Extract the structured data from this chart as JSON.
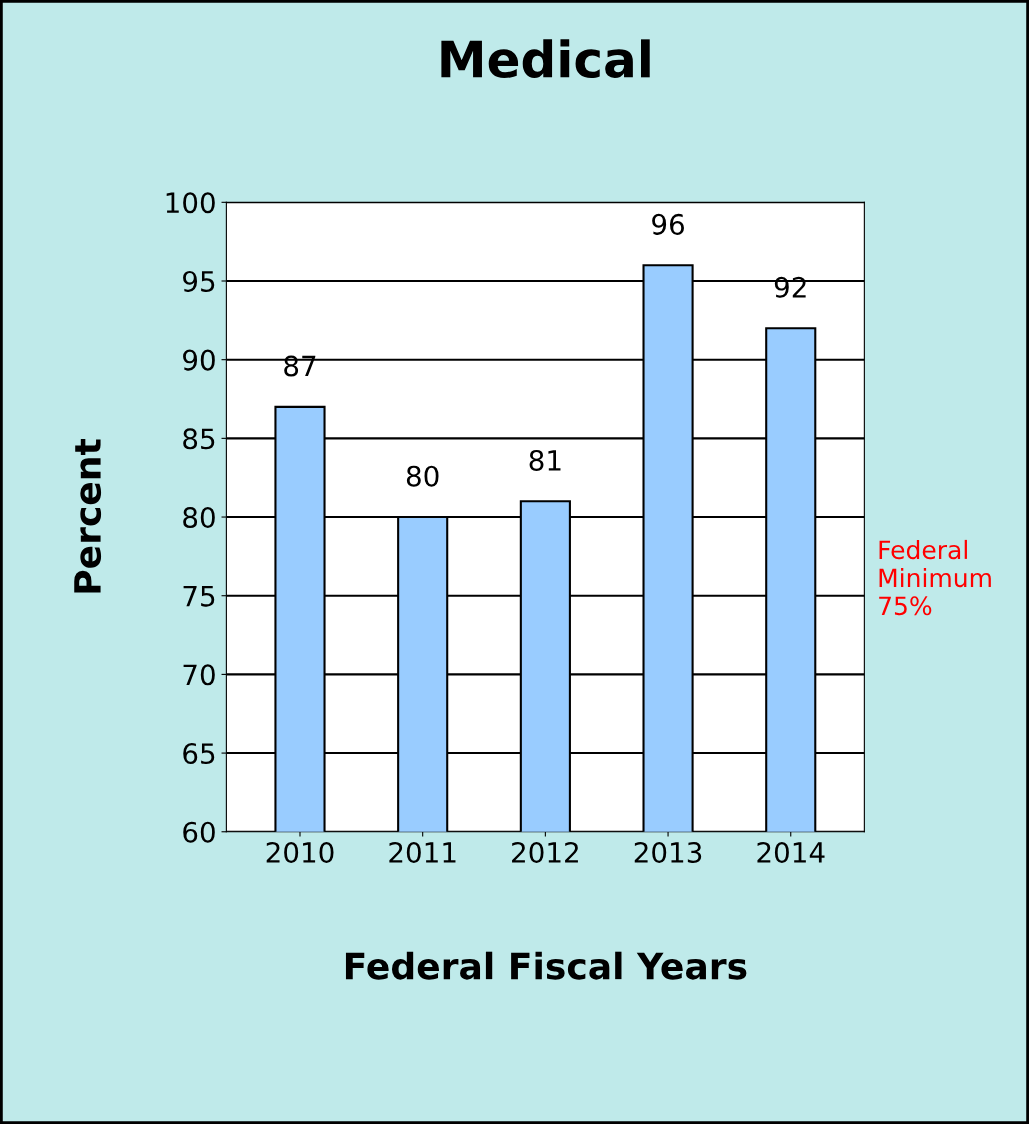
{
  "chart_data": {
    "type": "bar",
    "title": "Medical",
    "xlabel": "Federal Fiscal Years",
    "ylabel": "Percent",
    "categories": [
      "2010",
      "2011",
      "2012",
      "2013",
      "2014"
    ],
    "values": [
      87,
      80,
      81,
      96,
      92
    ],
    "color": "#99ccff",
    "ylim": [
      60,
      100
    ],
    "yticks": [
      60,
      65,
      70,
      75,
      80,
      85,
      90,
      95,
      100
    ],
    "grid": "y",
    "data_labels": true,
    "annotations": [
      "Federal\nMinimum\n75%"
    ]
  }
}
